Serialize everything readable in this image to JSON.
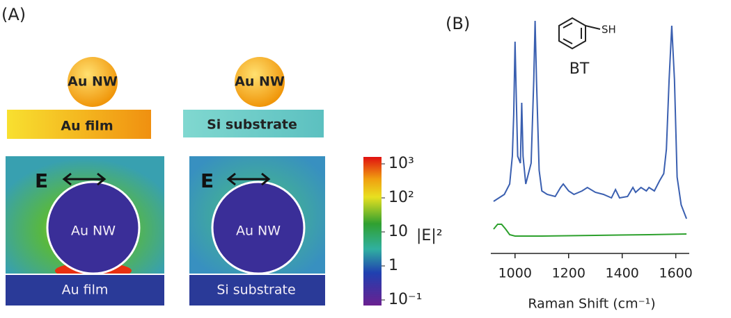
{
  "panel_a": {
    "label": "(A)",
    "left": {
      "wire": "Au NW",
      "substrate": "Au film",
      "field_wire": "Au NW",
      "field_substrate": "Au film",
      "field": "E"
    },
    "right": {
      "wire": "Au NW",
      "substrate": "Si substrate",
      "field_wire": "Au NW",
      "field_substrate": "Si substrate",
      "field": "E"
    },
    "colorbar": {
      "label": "|E|²",
      "lim": [
        0.1,
        1000
      ],
      "ticks": [
        {
          "value": 1000,
          "label": "10³"
        },
        {
          "value": 100,
          "label": "10²"
        },
        {
          "value": 10,
          "label": "10"
        },
        {
          "value": 1,
          "label": "1"
        },
        {
          "value": 0.1,
          "label": "10⁻¹"
        }
      ]
    }
  },
  "chart_data": {
    "type": "line",
    "panel_label": "(B)",
    "molecule": {
      "name": "BT",
      "group": "SH"
    },
    "xlabel": "Raman Shift (cm⁻¹)",
    "xlim": [
      920,
      1645
    ],
    "xticks": [
      1000,
      1200,
      1400,
      1600
    ],
    "ylim": [
      0,
      340
    ],
    "series": [
      {
        "color": "#3a5fb0",
        "x": [
          920,
          940,
          960,
          980,
          990,
          995,
          1000,
          1005,
          1010,
          1020,
          1025,
          1030,
          1040,
          1060,
          1070,
          1075,
          1080,
          1090,
          1100,
          1120,
          1150,
          1170,
          1180,
          1200,
          1220,
          1250,
          1270,
          1300,
          1330,
          1360,
          1375,
          1390,
          1420,
          1440,
          1450,
          1470,
          1490,
          1500,
          1520,
          1540,
          1555,
          1565,
          1575,
          1585,
          1595,
          1605,
          1620,
          1640
        ],
        "values": [
          75,
          80,
          85,
          100,
          140,
          200,
          305,
          220,
          140,
          130,
          217,
          140,
          100,
          130,
          250,
          335,
          250,
          120,
          90,
          85,
          82,
          95,
          100,
          90,
          85,
          90,
          95,
          88,
          85,
          80,
          92,
          80,
          82,
          95,
          88,
          95,
          90,
          95,
          90,
          105,
          115,
          150,
          250,
          328,
          250,
          110,
          70,
          50
        ]
      },
      {
        "color": "#2ca02c",
        "x": [
          920,
          935,
          950,
          965,
          980,
          1000,
          1100,
          1300,
          1500,
          1640
        ],
        "values": [
          35,
          42,
          42,
          35,
          27,
          25,
          25,
          26,
          27,
          28
        ]
      }
    ]
  }
}
